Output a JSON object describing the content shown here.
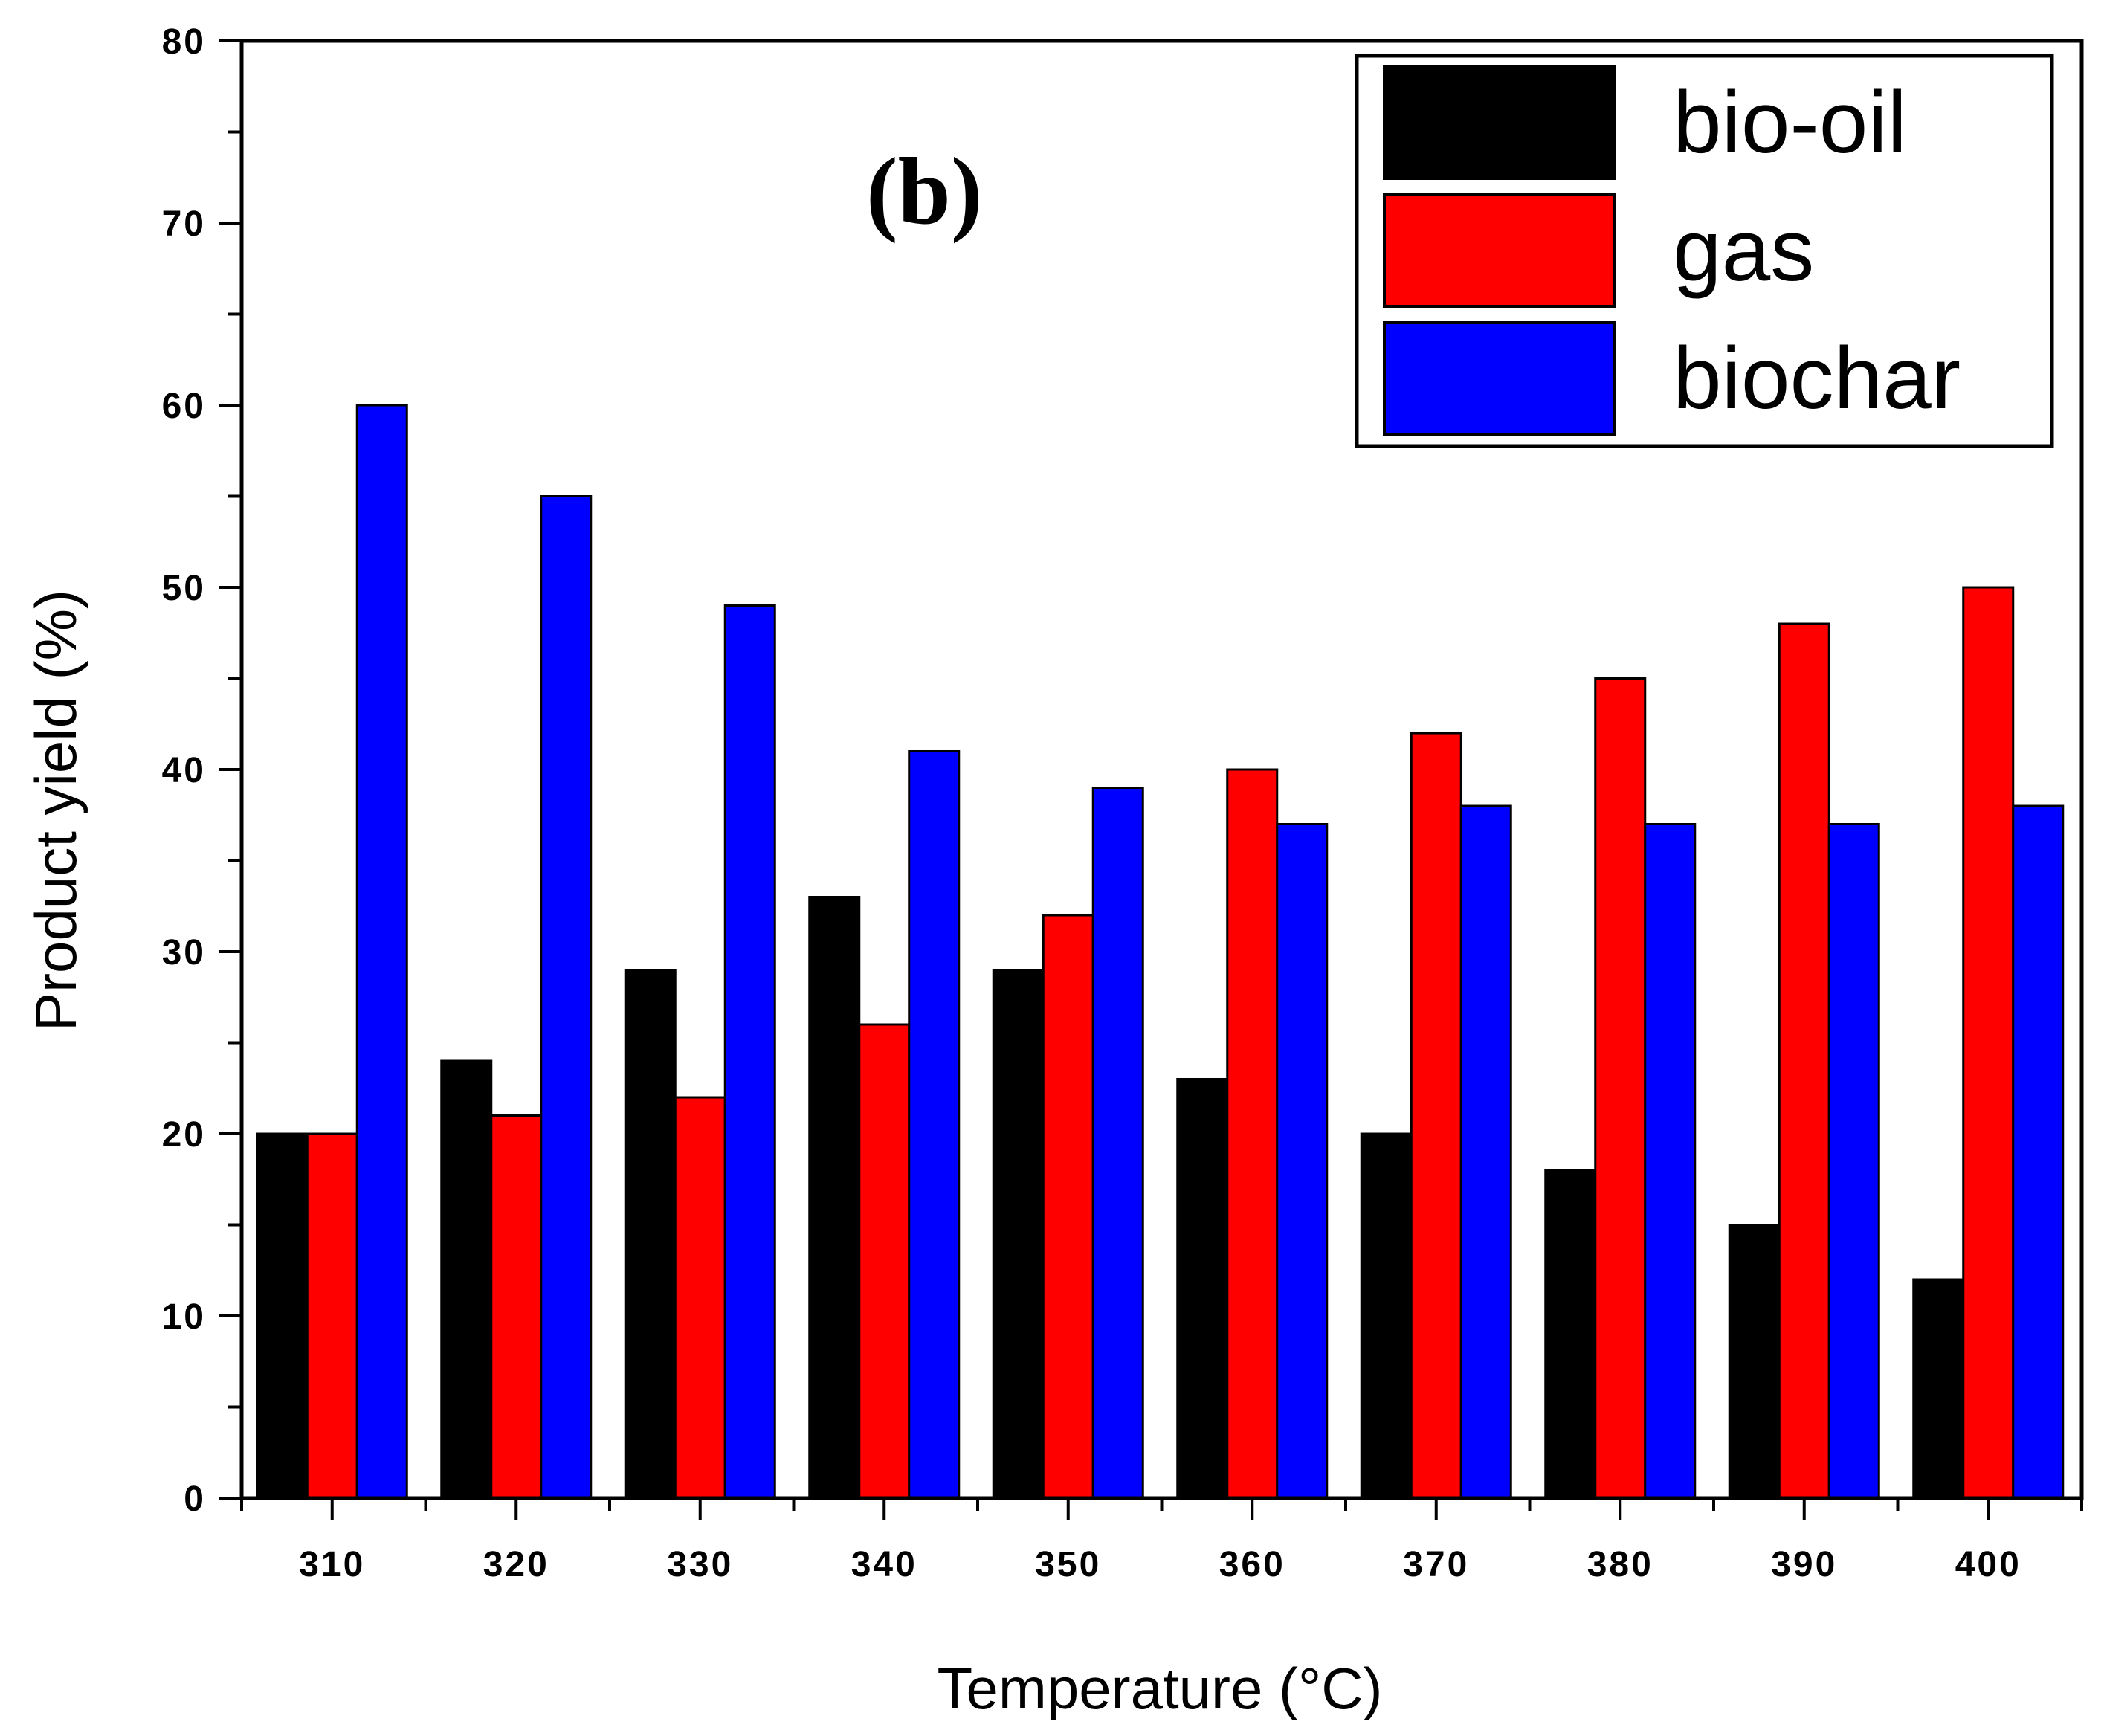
{
  "chart_data": {
    "type": "bar",
    "title": "",
    "panel_label": "(b)",
    "xlabel": "Temperature (°C)",
    "ylabel": "Product yield (%)",
    "ylim": [
      0,
      80
    ],
    "yticks": [
      "0",
      "10",
      "20",
      "30",
      "40",
      "50",
      "60",
      "70",
      "80"
    ],
    "categories": [
      "310",
      "320",
      "330",
      "340",
      "350",
      "360",
      "370",
      "380",
      "390",
      "400"
    ],
    "series": [
      {
        "name": "bio-oil",
        "color": "#000000",
        "values": [
          20,
          24,
          29,
          33,
          29,
          23,
          20,
          18,
          15,
          12
        ]
      },
      {
        "name": "gas",
        "color": "#ff0000",
        "values": [
          20,
          21,
          22,
          26,
          32,
          40,
          42,
          45,
          48,
          50
        ]
      },
      {
        "name": "biochar",
        "color": "#0000ff",
        "values": [
          60,
          55,
          49,
          41,
          39,
          37,
          38,
          37,
          37,
          38
        ]
      }
    ],
    "legend_position": "top-right",
    "grid": false
  }
}
